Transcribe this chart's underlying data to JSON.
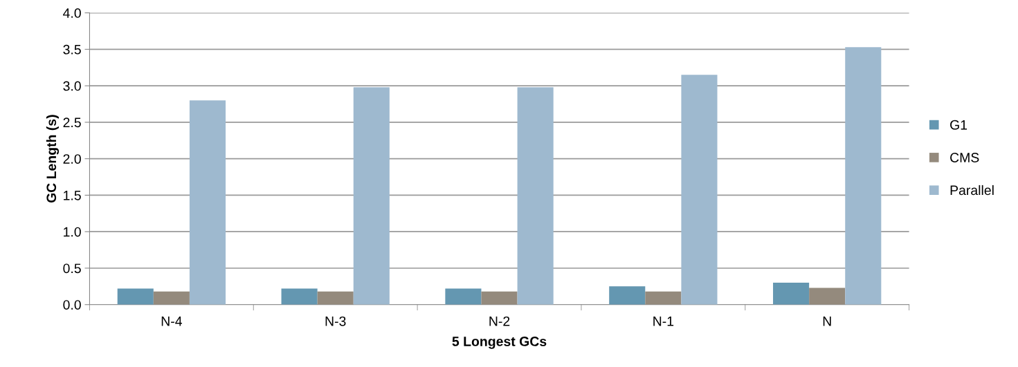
{
  "chart_data": {
    "type": "bar",
    "xlabel": "5 Longest GCs",
    "ylabel": "GC Length (s)",
    "categories": [
      "N-4",
      "N-3",
      "N-2",
      "N-1",
      "N"
    ],
    "series": [
      {
        "name": "G1",
        "color": "#6497b1",
        "values": [
          0.22,
          0.22,
          0.22,
          0.25,
          0.3
        ]
      },
      {
        "name": "CMS",
        "color": "#948a7d",
        "values": [
          0.18,
          0.18,
          0.18,
          0.18,
          0.23
        ]
      },
      {
        "name": "Parallel",
        "color": "#9eb9cf",
        "values": [
          2.8,
          2.98,
          2.98,
          3.15,
          3.53
        ]
      }
    ],
    "ylim": [
      0,
      4.0
    ],
    "yticks": [
      {
        "value": 0,
        "label": "0.0"
      },
      {
        "value": 0.5,
        "label": "0.5"
      },
      {
        "value": 1.0,
        "label": "1.0"
      },
      {
        "value": 1.5,
        "label": "1.5"
      },
      {
        "value": 2.0,
        "label": "2.0"
      },
      {
        "value": 2.5,
        "label": "2.5"
      },
      {
        "value": 3.0,
        "label": "3.0"
      },
      {
        "value": 3.5,
        "label": "3.5"
      },
      {
        "value": 4.0,
        "label": "4.0"
      }
    ],
    "grid": "y",
    "legend": "right"
  }
}
